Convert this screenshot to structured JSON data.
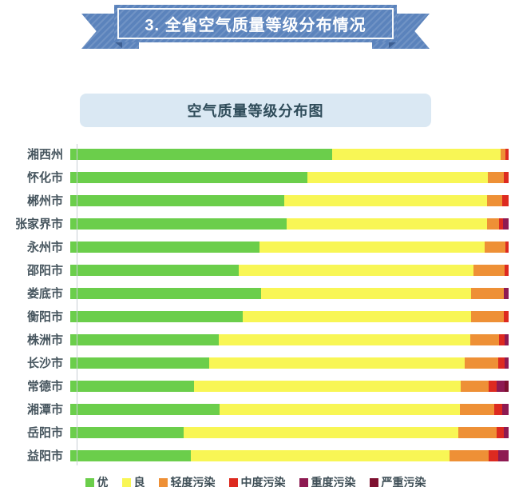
{
  "banner": {
    "title": "3. 全省空气质量等级分布情况"
  },
  "chart": {
    "title": "空气质量等级分布图"
  },
  "colors": {
    "banner_blue": "#5B83BC",
    "banner_fold": "#3D5F92",
    "title_box_bg": "#DAE8F3",
    "title_text": "#2E4B59",
    "axis_line": "#C8CED4",
    "category_label_text": "#46555E",
    "legend_text": "#3E4E56"
  },
  "chart_data": {
    "type": "stacked_bar_horizontal",
    "title": "空气质量等级分布图",
    "unit": "percent_of_days",
    "xlim": [
      0,
      100
    ],
    "grid": false,
    "legend_position": "bottom",
    "categories": [
      "湘西州",
      "怀化市",
      "郴州市",
      "张家界市",
      "永州市",
      "邵阳市",
      "娄底市",
      "衡阳市",
      "株洲市",
      "长沙市",
      "常德市",
      "湘潭市",
      "岳阳市",
      "益阳市"
    ],
    "series": [
      {
        "name": "优",
        "color": "#6BCE4B",
        "values": [
          59.8,
          54.1,
          48.9,
          49.3,
          43.2,
          38.4,
          43.5,
          39.3,
          33.8,
          31.7,
          28.2,
          34.1,
          25.8,
          27.5
        ]
      },
      {
        "name": "良",
        "color": "#F8F655",
        "values": [
          38.3,
          41.1,
          46.1,
          45.7,
          51.3,
          53.5,
          48.0,
          52.2,
          57.4,
          58.3,
          60.9,
          54.8,
          62.7,
          59.0
        ]
      },
      {
        "name": "轻度污染",
        "color": "#EE9036",
        "values": [
          1.1,
          3.7,
          3.5,
          2.8,
          4.8,
          7.2,
          7.4,
          7.4,
          6.6,
          7.6,
          6.3,
          7.9,
          8.7,
          9.0
        ]
      },
      {
        "name": "中度污染",
        "color": "#DD2A20",
        "values": [
          0.8,
          1.1,
          1.5,
          0.9,
          0.7,
          0.9,
          0.0,
          1.1,
          1.3,
          1.5,
          1.8,
          1.8,
          1.7,
          2.2
        ]
      },
      {
        "name": "重度污染",
        "color": "#8E1A52",
        "values": [
          0.0,
          0.0,
          0.0,
          1.3,
          0.0,
          0.0,
          1.1,
          0.0,
          0.9,
          0.9,
          1.9,
          1.4,
          1.1,
          2.3
        ]
      },
      {
        "name": "严重污染",
        "color": "#7E1030",
        "values": [
          0.0,
          0.0,
          0.0,
          0.0,
          0.0,
          0.0,
          0.0,
          0.0,
          0.0,
          0.0,
          0.9,
          0.0,
          0.0,
          0.0
        ]
      }
    ]
  }
}
